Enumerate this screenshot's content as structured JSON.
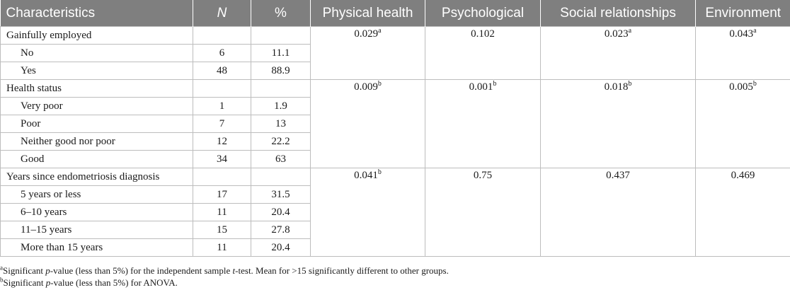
{
  "table": {
    "headers": [
      "Characteristics",
      "N",
      "%",
      "Physical health",
      "Psychological",
      "Social relationships",
      "Environment"
    ],
    "groups": [
      {
        "label": "Gainfully employed",
        "pvalues": [
          {
            "value": "0.029",
            "sup": "a"
          },
          {
            "value": "0.102",
            "sup": ""
          },
          {
            "value": "0.023",
            "sup": "a"
          },
          {
            "value": "0.043",
            "sup": "a"
          }
        ],
        "rows": [
          {
            "label": "No",
            "n": "6",
            "pct": "11.1"
          },
          {
            "label": "Yes",
            "n": "48",
            "pct": "88.9"
          }
        ]
      },
      {
        "label": "Health status",
        "pvalues": [
          {
            "value": "0.009",
            "sup": "b"
          },
          {
            "value": "0.001",
            "sup": "b"
          },
          {
            "value": "0.018",
            "sup": "b"
          },
          {
            "value": "0.005",
            "sup": "b"
          }
        ],
        "rows": [
          {
            "label": "Very poor",
            "n": "1",
            "pct": "1.9"
          },
          {
            "label": "Poor",
            "n": "7",
            "pct": "13"
          },
          {
            "label": "Neither good nor poor",
            "n": "12",
            "pct": "22.2"
          },
          {
            "label": "Good",
            "n": "34",
            "pct": "63"
          }
        ]
      },
      {
        "label": "Years since endometriosis diagnosis",
        "pvalues": [
          {
            "value": "0.041",
            "sup": "b"
          },
          {
            "value": "0.75",
            "sup": ""
          },
          {
            "value": "0.437",
            "sup": ""
          },
          {
            "value": "0.469",
            "sup": ""
          }
        ],
        "rows": [
          {
            "label": "5 years or less",
            "n": "17",
            "pct": "31.5"
          },
          {
            "label": "6–10 years",
            "n": "11",
            "pct": "20.4"
          },
          {
            "label": "11–15 years",
            "n": "15",
            "pct": "27.8"
          },
          {
            "label": "More than 15 years",
            "n": "11",
            "pct": "20.4"
          }
        ]
      }
    ]
  },
  "footnotes": [
    {
      "marker": "a",
      "parts": [
        {
          "text": "Significant ",
          "italic": false
        },
        {
          "text": "p",
          "italic": true
        },
        {
          "text": "-value (less than 5%) for the independent sample ",
          "italic": false
        },
        {
          "text": "t",
          "italic": true
        },
        {
          "text": "-test. Mean for >15 significantly different to other groups.",
          "italic": false
        }
      ]
    },
    {
      "marker": "b",
      "parts": [
        {
          "text": "Significant ",
          "italic": false
        },
        {
          "text": "p",
          "italic": true
        },
        {
          "text": "-value (less than 5%) for ANOVA.",
          "italic": false
        }
      ]
    }
  ]
}
